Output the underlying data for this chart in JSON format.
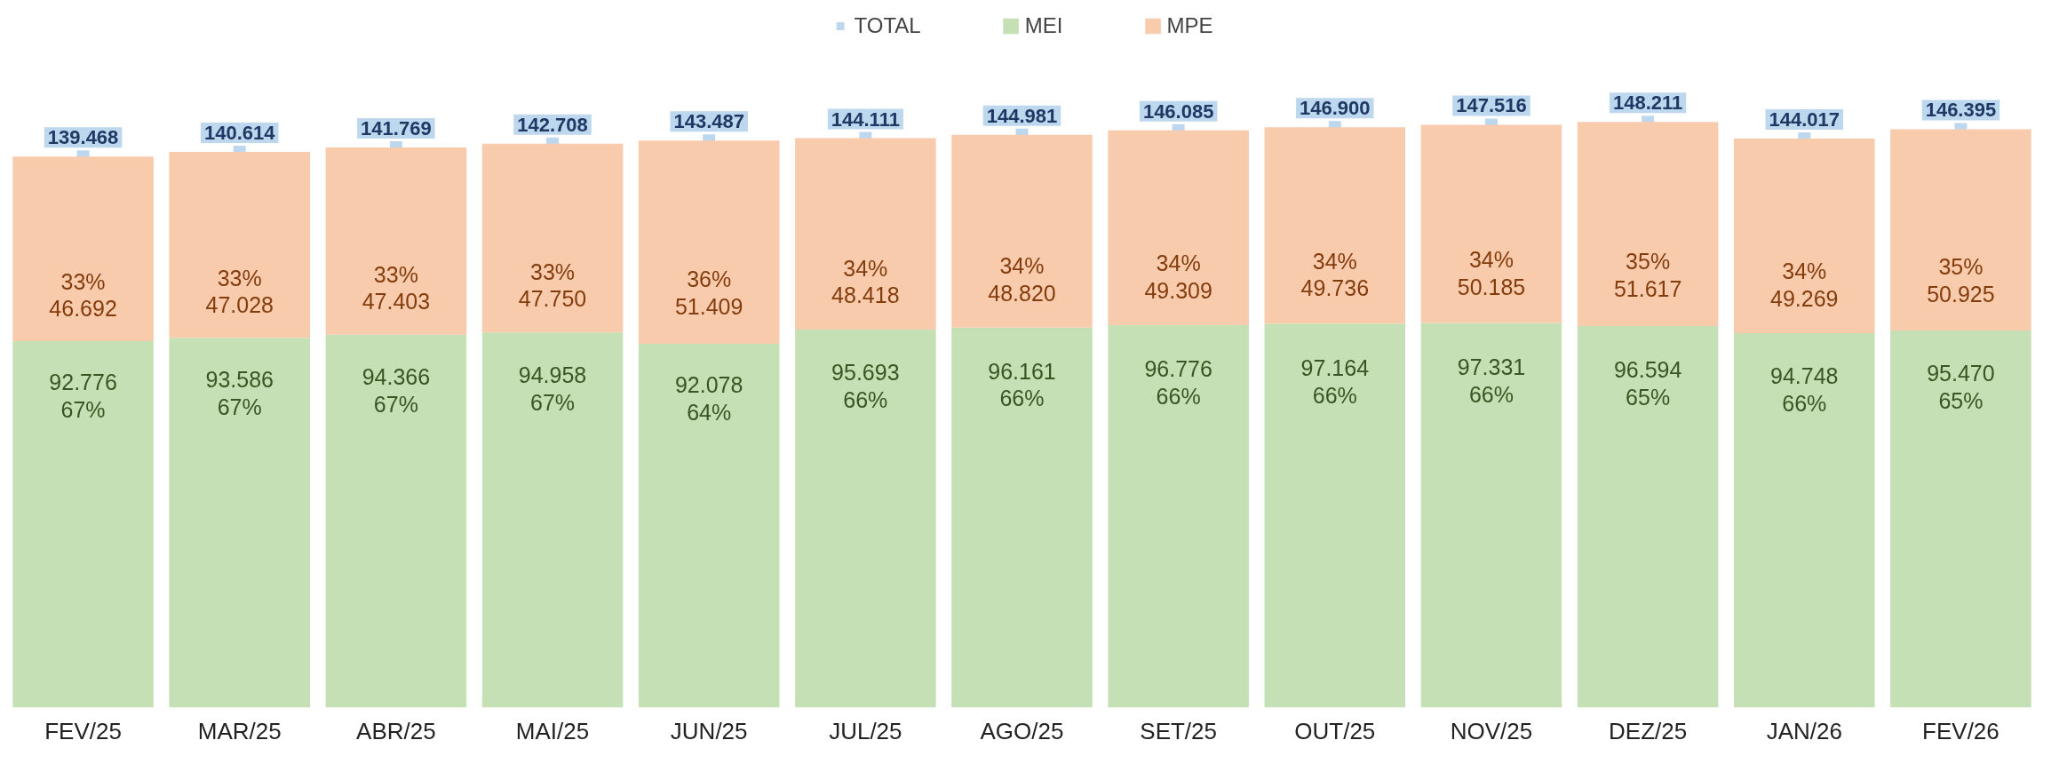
{
  "chart_data": {
    "type": "bar",
    "stacked": true,
    "categories": [
      "FEV/25",
      "MAR/25",
      "ABR/25",
      "MAI/25",
      "JUN/25",
      "JUL/25",
      "AGO/25",
      "SET/25",
      "OUT/25",
      "NOV/25",
      "DEZ/25",
      "JAN/26",
      "FEV/26"
    ],
    "series": [
      {
        "name": "TOTAL",
        "type": "scatter",
        "marker": "square",
        "color": "#bdd7ee",
        "values": [
          139468,
          140614,
          141769,
          142708,
          143487,
          144111,
          144981,
          146085,
          146900,
          147516,
          148211,
          144017,
          146395
        ],
        "value_labels": [
          "139.468",
          "140.614",
          "141.769",
          "142.708",
          "143.487",
          "144.111",
          "144.981",
          "146.085",
          "146.900",
          "147.516",
          "148.211",
          "144.017",
          "146.395"
        ]
      },
      {
        "name": "MEI",
        "color": "#c5e0b4",
        "values": [
          92776,
          93586,
          94366,
          94958,
          92078,
          95693,
          96161,
          96776,
          97164,
          97331,
          96594,
          94748,
          95470
        ],
        "value_labels": [
          "92.776\n67%",
          "93.586\n67%",
          "94.366\n67%",
          "94.958\n67%",
          "92.078\n64%",
          "95.693\n66%",
          "96.161\n66%",
          "96.776\n66%",
          "97.164\n66%",
          "97.331\n66%",
          "96.594\n65%",
          "94.748\n66%",
          "95.470\n65%"
        ]
      },
      {
        "name": "MPE",
        "color": "#f8cbad",
        "values": [
          46692,
          47028,
          47403,
          47750,
          51409,
          48418,
          48820,
          49309,
          49736,
          50185,
          51617,
          49269,
          50925
        ],
        "value_labels": [
          "33%\n46.692",
          "33%\n47.028",
          "33%\n47.403",
          "33%\n47.750",
          "36%\n51.409",
          "34%\n48.418",
          "34%\n48.820",
          "34%\n49.309",
          "34%\n49.736",
          "34%\n50.185",
          "35%\n51.617",
          "34%\n49.269",
          "35%\n50.925"
        ]
      }
    ],
    "tick_labels": "x",
    "grid": false,
    "legend": "top"
  }
}
